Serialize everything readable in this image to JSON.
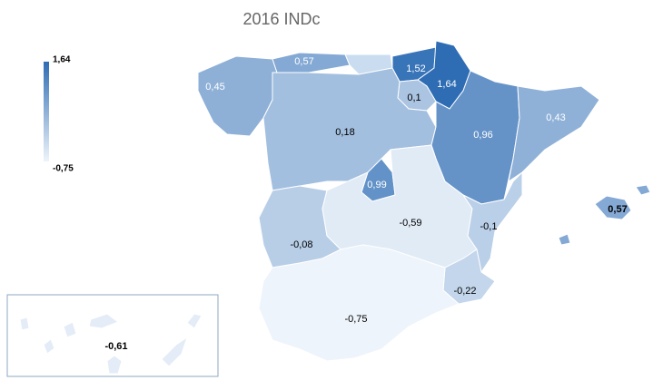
{
  "chart_data": {
    "type": "choropleth",
    "title": "2016 INDc",
    "values": [
      0.45,
      0.57,
      1.52,
      1.64,
      0.1,
      0.18,
      0.96,
      0.43,
      0.99,
      -0.08,
      -0.59,
      -0.1,
      -0.22,
      -0.75,
      0.57,
      -0.61
    ],
    "value_labels": [
      "0,45",
      "0,57",
      "1,52",
      "1,64",
      "0,1",
      "0,18",
      "0,96",
      "0,43",
      "0,99",
      "-0,08",
      "-0,59",
      "-0,1",
      "-0,22",
      "-0,75",
      "0,57",
      "-0,61"
    ],
    "clim": [
      -0.75,
      1.64
    ],
    "cticks": [
      {
        "value": 1.64,
        "label": "1,64"
      },
      {
        "value": -0.75,
        "label": "-0,75"
      }
    ],
    "colors": [
      "#eef4fb",
      "#2e6db4"
    ]
  }
}
